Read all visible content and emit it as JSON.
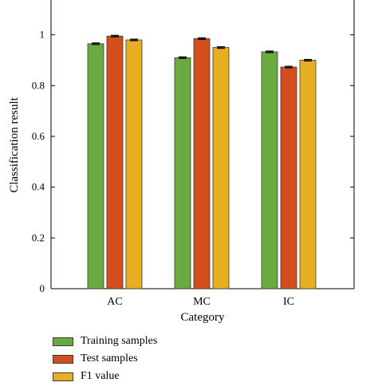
{
  "chart_data": {
    "type": "bar",
    "title": "",
    "xlabel": "Category",
    "ylabel": "Classification result",
    "categories": [
      "AC",
      "MC",
      "IC"
    ],
    "ylim": [
      0,
      1.2
    ],
    "yticks": [
      "0",
      "0.2",
      "0.4",
      "0.6",
      "0.8",
      "1"
    ],
    "ytick_values": [
      0,
      0.2,
      0.4,
      0.6,
      0.8,
      1.0
    ],
    "grid": false,
    "legend_position": "bottom",
    "series": [
      {
        "name": "Training samples",
        "color": "#6aaa40",
        "values": [
          0.965,
          0.91,
          0.933
        ],
        "error": [
          0.003,
          0.003,
          0.003
        ]
      },
      {
        "name": "Test samples",
        "color": "#d24e1c",
        "values": [
          0.995,
          0.985,
          0.873
        ],
        "error": [
          0.003,
          0.003,
          0.003
        ]
      },
      {
        "name": "F1 value",
        "color": "#e8ae22",
        "values": [
          0.98,
          0.95,
          0.9
        ],
        "error": [
          0.003,
          0.003,
          0.003
        ]
      }
    ]
  }
}
